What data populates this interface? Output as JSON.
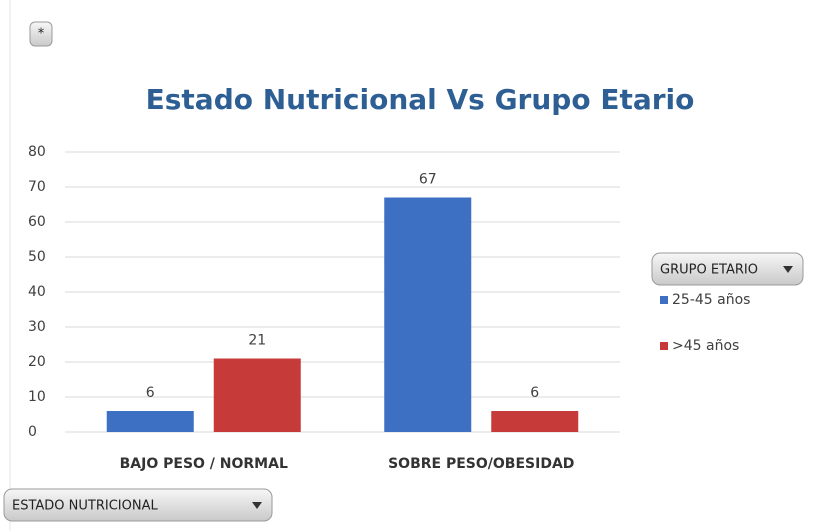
{
  "filter_button": "*",
  "chart_data": {
    "type": "bar",
    "title": "Estado Nutricional  Vs Grupo Etario",
    "categories": [
      "BAJO PESO / NORMAL",
      "SOBRE PESO/OBESIDAD"
    ],
    "series": [
      {
        "name": "25-45 años",
        "color": "#3d6fc2",
        "values": [
          6,
          67
        ]
      },
      {
        "name": ">45 años",
        "color": "#c63a3a",
        "values": [
          21,
          6
        ]
      }
    ],
    "ylim": [
      0,
      80
    ],
    "yticks": [
      0,
      10,
      20,
      30,
      40,
      50,
      60,
      70,
      80
    ],
    "grid": true,
    "legend": "right",
    "legend_title": "GRUPO ETARIO",
    "axis_field_button": "ESTADO NUTRICIONAL"
  }
}
